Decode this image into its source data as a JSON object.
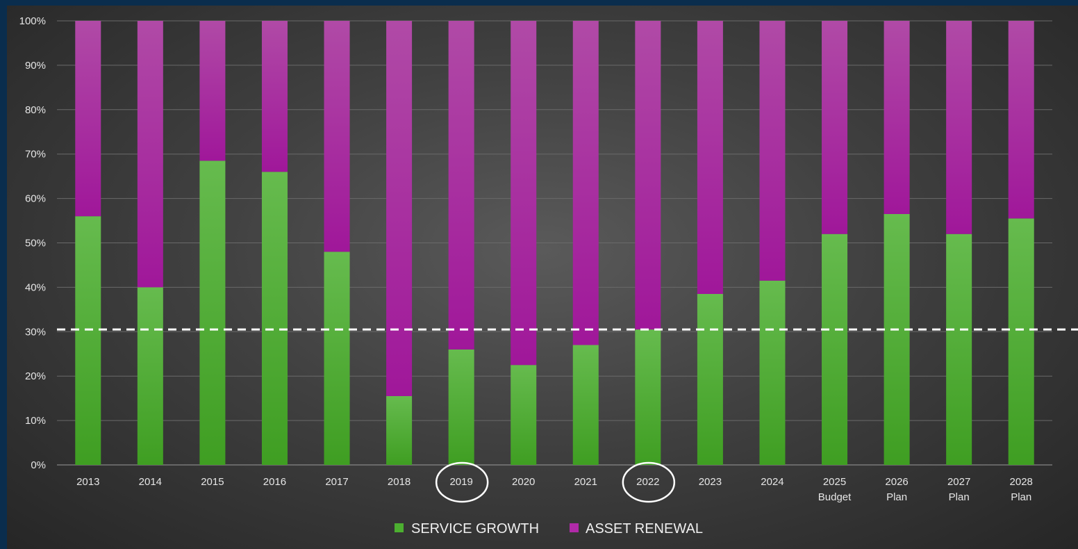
{
  "chart_data": {
    "type": "bar",
    "stacked": true,
    "categories": [
      [
        "2013"
      ],
      [
        "2014"
      ],
      [
        "2015"
      ],
      [
        "2016"
      ],
      [
        "2017"
      ],
      [
        "2018"
      ],
      [
        "2019"
      ],
      [
        "2020"
      ],
      [
        "2021"
      ],
      [
        "2022"
      ],
      [
        "2023"
      ],
      [
        "2024"
      ],
      [
        "2025",
        "Budget"
      ],
      [
        "2026",
        "Plan"
      ],
      [
        "2027",
        "Plan"
      ],
      [
        "2028",
        "Plan"
      ]
    ],
    "series": [
      {
        "name": "SERVICE GROWTH",
        "color": "#4caf30",
        "values": [
          56,
          40,
          68.5,
          66,
          48,
          15.5,
          26,
          22.5,
          27,
          30.5,
          38.5,
          41.5,
          52,
          56.5,
          52,
          55.5
        ]
      },
      {
        "name": "ASSET RENEWAL",
        "color": "#b02aa8",
        "values": [
          44,
          60,
          31.5,
          34,
          52,
          84.5,
          74,
          77.5,
          73,
          69.5,
          61.5,
          58.5,
          48,
          43.5,
          48,
          44.5
        ]
      }
    ],
    "yticks": [
      "0%",
      "10%",
      "20%",
      "30%",
      "40%",
      "50%",
      "60%",
      "70%",
      "80%",
      "90%",
      "100%"
    ],
    "ylim": [
      0,
      100
    ],
    "reference_line": {
      "value": 30.5,
      "style": "dashed",
      "color": "#ffffff"
    },
    "highlighted_categories": [
      "2019",
      "2022"
    ],
    "legend_position": "bottom-center",
    "grid": true
  }
}
